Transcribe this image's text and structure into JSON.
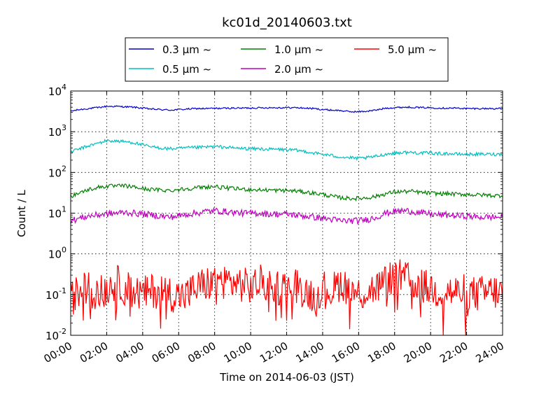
{
  "chart_data": {
    "type": "line",
    "title": "kc01d_20140603.txt",
    "xlabel": "Time on 2014-06-03 (JST)",
    "ylabel": "Count / L",
    "yscale": "log",
    "ylim": [
      0.01,
      10000
    ],
    "xlim": [
      "00:00",
      "24:00"
    ],
    "x_tick_labels": [
      "00:00",
      "02:00",
      "04:00",
      "06:00",
      "08:00",
      "10:00",
      "12:00",
      "14:00",
      "16:00",
      "18:00",
      "20:00",
      "22:00",
      "24:00"
    ],
    "y_tick_labels": [
      {
        "base": "10",
        "exp": "-2",
        "value": 0.01
      },
      {
        "base": "10",
        "exp": "-1",
        "value": 0.1
      },
      {
        "base": "10",
        "exp": "0",
        "value": 1
      },
      {
        "base": "10",
        "exp": "1",
        "value": 10
      },
      {
        "base": "10",
        "exp": "2",
        "value": 100
      },
      {
        "base": "10",
        "exp": "3",
        "value": 1000
      },
      {
        "base": "10",
        "exp": "4",
        "value": 10000
      }
    ],
    "grid": true,
    "legend_position": "top-center, outside plot",
    "x_hours": [
      0,
      0.5,
      1,
      1.5,
      2,
      2.5,
      3,
      3.5,
      4,
      4.5,
      5,
      5.5,
      6,
      6.5,
      7,
      7.5,
      8,
      8.5,
      9,
      9.5,
      10,
      10.5,
      11,
      11.5,
      12,
      12.5,
      13,
      13.5,
      14,
      14.5,
      15,
      15.5,
      16,
      16.5,
      17,
      17.5,
      18,
      18.5,
      19,
      19.5,
      20,
      20.5,
      21,
      21.5,
      22,
      22.5,
      23,
      23.5,
      24
    ],
    "series": [
      {
        "name": "0.3 μm ~",
        "color": "#0000cc",
        "values": [
          3200,
          3500,
          3700,
          3900,
          4200,
          4200,
          4100,
          4000,
          3800,
          3600,
          3500,
          3400,
          3500,
          3600,
          3700,
          3700,
          3750,
          3750,
          3800,
          3800,
          3850,
          3850,
          3900,
          3900,
          3900,
          3900,
          3800,
          3700,
          3500,
          3400,
          3300,
          3100,
          3100,
          3200,
          3400,
          3800,
          3900,
          4000,
          4000,
          3900,
          3900,
          3800,
          3800,
          3800,
          3700,
          3700,
          3700,
          3700,
          3700
        ]
      },
      {
        "name": "0.5 μm ~",
        "color": "#00bfbf",
        "values": [
          320,
          380,
          450,
          520,
          600,
          590,
          570,
          540,
          470,
          420,
          400,
          380,
          390,
          400,
          410,
          420,
          430,
          420,
          400,
          390,
          380,
          380,
          370,
          370,
          360,
          350,
          330,
          300,
          280,
          260,
          240,
          230,
          220,
          230,
          250,
          280,
          300,
          310,
          310,
          300,
          300,
          290,
          290,
          280,
          280,
          280,
          280,
          280,
          280
        ]
      },
      {
        "name": "1.0 μm ~",
        "color": "#008000",
        "values": [
          26,
          32,
          38,
          43,
          46,
          46,
          47,
          44,
          40,
          38,
          37,
          36,
          38,
          40,
          42,
          44,
          45,
          42,
          40,
          39,
          38,
          37,
          37,
          36,
          36,
          35,
          33,
          31,
          29,
          26,
          24,
          23,
          23,
          24,
          26,
          30,
          33,
          34,
          34,
          32,
          31,
          30,
          30,
          29,
          29,
          28,
          28,
          27,
          27
        ]
      },
      {
        "name": "2.0 μm ~",
        "color": "#bf00bf",
        "values": [
          6.5,
          7.5,
          8.5,
          9,
          9.5,
          10,
          10.5,
          10,
          9.5,
          9,
          8.5,
          8,
          8.5,
          9.5,
          10,
          11,
          11.5,
          11,
          10.5,
          10,
          10,
          10,
          9.5,
          9.5,
          9.5,
          9,
          8.5,
          8,
          7.5,
          7,
          6.5,
          6.5,
          6.5,
          7,
          8,
          10,
          11,
          11.5,
          11,
          10,
          9.5,
          9,
          9,
          8.5,
          8.5,
          8,
          8,
          8,
          8
        ]
      },
      {
        "name": "5.0 μm ~",
        "color": "#ff0000",
        "values": [
          0.08,
          0.12,
          0.15,
          0.1,
          0.14,
          0.2,
          0.15,
          0.12,
          0.1,
          0.12,
          0.13,
          0.11,
          0.09,
          0.1,
          0.15,
          0.18,
          0.2,
          0.22,
          0.2,
          0.18,
          0.15,
          0.2,
          0.17,
          0.15,
          0.15,
          0.18,
          0.12,
          0.1,
          0.15,
          0.12,
          0.2,
          0.14,
          0.1,
          0.12,
          0.15,
          0.2,
          0.3,
          0.25,
          0.2,
          0.16,
          0.14,
          0.12,
          0.12,
          0.11,
          0.12,
          0.1,
          0.11,
          0.12,
          0.1
        ]
      }
    ]
  }
}
